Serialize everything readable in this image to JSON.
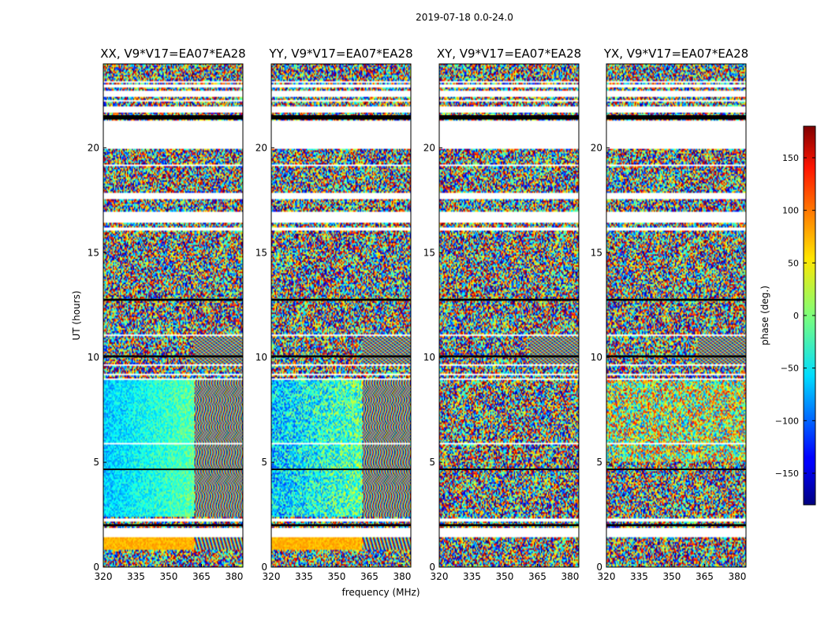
{
  "figure": {
    "suptitle": "2019-07-18 0.0-24.0",
    "xlabel": "frequency (MHz)",
    "ylabel": "UT (hours)"
  },
  "chart_data": {
    "type": "heatmap",
    "title": "2019-07-18 0.0-24.0",
    "xlabel": "frequency (MHz)",
    "ylabel": "UT (hours)",
    "xlim": [
      320,
      384
    ],
    "ylim": [
      0,
      24
    ],
    "xticks": [
      320,
      335,
      350,
      365,
      380
    ],
    "yticks": [
      0,
      5,
      10,
      15,
      20
    ],
    "panels": [
      {
        "title": "XX, V9*V17=EA07*EA28",
        "pol": "XX"
      },
      {
        "title": "YY, V9*V17=EA07*EA28",
        "pol": "YY"
      },
      {
        "title": "XY, V9*V17=EA07*EA28",
        "pol": "XY"
      },
      {
        "title": "YX, V9*V17=EA07*EA28",
        "pol": "YX"
      }
    ],
    "colorbar": {
      "label": "phase (deg.)",
      "range": [
        -180,
        180
      ],
      "ticks": [
        -150,
        -100,
        -50,
        0,
        50,
        100,
        150
      ],
      "colormap": "jet"
    },
    "flagged_gaps_hours": [
      [
        1.4,
        1.9
      ],
      [
        2.15,
        2.3
      ],
      [
        3.5,
        3.55
      ],
      [
        5.85,
        5.95
      ],
      [
        6.05,
        6.1
      ],
      [
        8.9,
        9.0
      ],
      [
        9.15,
        9.25
      ],
      [
        9.6,
        9.7
      ],
      [
        11.05,
        11.1
      ],
      [
        16.05,
        16.2
      ],
      [
        16.45,
        16.95
      ],
      [
        17.55,
        17.85
      ],
      [
        19.1,
        19.2
      ],
      [
        19.95,
        21.3
      ],
      [
        21.65,
        21.95
      ],
      [
        22.2,
        22.3
      ],
      [
        22.45,
        22.7
      ],
      [
        22.85,
        23.0
      ],
      [
        23.1,
        23.2
      ]
    ],
    "black_bands_hours": [
      [
        21.35,
        21.55
      ],
      [
        12.7,
        12.8
      ],
      [
        10.0,
        10.1
      ],
      [
        4.65,
        4.7
      ],
      [
        1.95,
        2.05
      ]
    ]
  }
}
